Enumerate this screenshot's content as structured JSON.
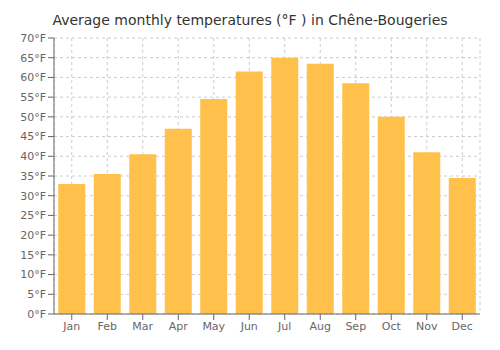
{
  "chart_data": {
    "type": "bar",
    "title": "Average monthly temperatures (°F ) in Chêne-Bougeries",
    "categories": [
      "Jan",
      "Feb",
      "Mar",
      "Apr",
      "May",
      "Jun",
      "Jul",
      "Aug",
      "Sep",
      "Oct",
      "Nov",
      "Dec"
    ],
    "values": [
      33,
      35.5,
      40.5,
      47,
      54.5,
      61.5,
      65,
      63.5,
      58.5,
      50,
      41,
      34.5
    ],
    "color": "#FFC04C",
    "ylim": [
      0,
      70
    ],
    "yticks": [
      {
        "value": 0,
        "label": "0°F"
      },
      {
        "value": 5,
        "label": "5°F"
      },
      {
        "value": 10,
        "label": "10°F"
      },
      {
        "value": 15,
        "label": "15°F"
      },
      {
        "value": 20,
        "label": "20°F"
      },
      {
        "value": 25,
        "label": "25°F"
      },
      {
        "value": 30,
        "label": "30°F"
      },
      {
        "value": 35,
        "label": "35°F"
      },
      {
        "value": 40,
        "label": "40°F"
      },
      {
        "value": 45,
        "label": "45°F"
      },
      {
        "value": 50,
        "label": "50°F"
      },
      {
        "value": 55,
        "label": "55°F"
      },
      {
        "value": 60,
        "label": "60°F"
      },
      {
        "value": 65,
        "label": "65°F"
      },
      {
        "value": 70,
        "label": "70°F"
      }
    ],
    "grid": true
  }
}
